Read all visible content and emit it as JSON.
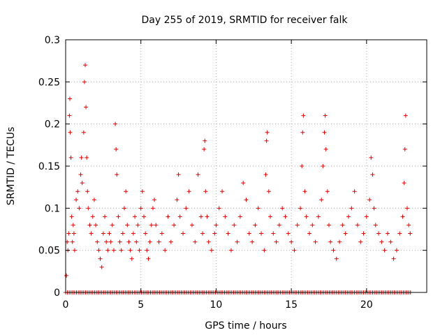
{
  "chart_data": {
    "type": "scatter",
    "title": "Day 255 of 2019, SRMTID for receiver falk",
    "xlabel": "GPS time / hours",
    "ylabel": "SRMTID / TECUs",
    "xlim": [
      0,
      24
    ],
    "ylim": [
      0,
      0.3
    ],
    "x_ticks": [
      0,
      5,
      10,
      15,
      20
    ],
    "x_tick_labels": [
      "0",
      "5",
      "10",
      "15",
      "20"
    ],
    "y_ticks": [
      0,
      0.05,
      0.1,
      0.15,
      0.2,
      0.25,
      0.3
    ],
    "y_tick_labels": [
      "0",
      "0.05",
      "0.1",
      "0.15",
      "0.2",
      "0.25",
      "0.3"
    ],
    "grid": true,
    "marker": "+",
    "series": [
      {
        "name": "SRMTID",
        "color": "#e00000",
        "points": [
          [
            0.05,
            0.02
          ],
          [
            0.1,
            0.06
          ],
          [
            0.15,
            0.05
          ],
          [
            0.2,
            0.07
          ],
          [
            0.25,
            0.21
          ],
          [
            0.28,
            0.23
          ],
          [
            0.3,
            0.19
          ],
          [
            0.35,
            0.16
          ],
          [
            0.4,
            0.09
          ],
          [
            0.45,
            0.06
          ],
          [
            0.5,
            0.08
          ],
          [
            0.55,
            0.07
          ],
          [
            0.6,
            0.05
          ],
          [
            0.7,
            0.11
          ],
          [
            0.8,
            0.12
          ],
          [
            0.9,
            0.1
          ],
          [
            1.0,
            0.14
          ],
          [
            1.05,
            0.16
          ],
          [
            1.1,
            0.13
          ],
          [
            1.2,
            0.19
          ],
          [
            1.25,
            0.25
          ],
          [
            1.3,
            0.27
          ],
          [
            1.35,
            0.22
          ],
          [
            1.4,
            0.16
          ],
          [
            1.45,
            0.12
          ],
          [
            1.5,
            0.1
          ],
          [
            1.6,
            0.08
          ],
          [
            1.7,
            0.07
          ],
          [
            1.8,
            0.09
          ],
          [
            1.9,
            0.11
          ],
          [
            2.0,
            0.08
          ],
          [
            2.1,
            0.06
          ],
          [
            2.2,
            0.05
          ],
          [
            2.3,
            0.04
          ],
          [
            2.4,
            0.03
          ],
          [
            2.5,
            0.07
          ],
          [
            2.6,
            0.09
          ],
          [
            2.7,
            0.06
          ],
          [
            2.8,
            0.05
          ],
          [
            2.9,
            0.07
          ],
          [
            3.0,
            0.06
          ],
          [
            3.1,
            0.08
          ],
          [
            3.2,
            0.05
          ],
          [
            3.3,
            0.2
          ],
          [
            3.35,
            0.17
          ],
          [
            3.4,
            0.14
          ],
          [
            3.5,
            0.09
          ],
          [
            3.6,
            0.06
          ],
          [
            3.7,
            0.05
          ],
          [
            3.8,
            0.07
          ],
          [
            3.9,
            0.1
          ],
          [
            4.0,
            0.12
          ],
          [
            4.1,
            0.08
          ],
          [
            4.2,
            0.06
          ],
          [
            4.3,
            0.05
          ],
          [
            4.4,
            0.04
          ],
          [
            4.5,
            0.07
          ],
          [
            4.6,
            0.09
          ],
          [
            4.7,
            0.06
          ],
          [
            4.8,
            0.08
          ],
          [
            4.9,
            0.05
          ],
          [
            5.0,
            0.1
          ],
          [
            5.1,
            0.12
          ],
          [
            5.2,
            0.09
          ],
          [
            5.3,
            0.07
          ],
          [
            5.4,
            0.05
          ],
          [
            5.5,
            0.04
          ],
          [
            5.6,
            0.06
          ],
          [
            5.7,
            0.08
          ],
          [
            5.8,
            0.1
          ],
          [
            5.9,
            0.11
          ],
          [
            6.0,
            0.08
          ],
          [
            6.2,
            0.06
          ],
          [
            6.4,
            0.07
          ],
          [
            6.6,
            0.05
          ],
          [
            6.8,
            0.09
          ],
          [
            7.0,
            0.06
          ],
          [
            7.2,
            0.08
          ],
          [
            7.4,
            0.11
          ],
          [
            7.5,
            0.14
          ],
          [
            7.6,
            0.09
          ],
          [
            7.8,
            0.07
          ],
          [
            8.0,
            0.1
          ],
          [
            8.2,
            0.12
          ],
          [
            8.4,
            0.08
          ],
          [
            8.6,
            0.06
          ],
          [
            8.8,
            0.14
          ],
          [
            9.0,
            0.09
          ],
          [
            9.1,
            0.07
          ],
          [
            9.2,
            0.17
          ],
          [
            9.25,
            0.18
          ],
          [
            9.3,
            0.12
          ],
          [
            9.4,
            0.09
          ],
          [
            9.5,
            0.06
          ],
          [
            9.7,
            0.05
          ],
          [
            9.9,
            0.07
          ],
          [
            10.0,
            0.08
          ],
          [
            10.2,
            0.1
          ],
          [
            10.4,
            0.12
          ],
          [
            10.6,
            0.09
          ],
          [
            10.8,
            0.07
          ],
          [
            11.0,
            0.05
          ],
          [
            11.2,
            0.08
          ],
          [
            11.4,
            0.06
          ],
          [
            11.6,
            0.09
          ],
          [
            11.8,
            0.13
          ],
          [
            12.0,
            0.11
          ],
          [
            12.2,
            0.07
          ],
          [
            12.4,
            0.06
          ],
          [
            12.6,
            0.08
          ],
          [
            12.8,
            0.1
          ],
          [
            13.0,
            0.07
          ],
          [
            13.2,
            0.05
          ],
          [
            13.3,
            0.14
          ],
          [
            13.35,
            0.18
          ],
          [
            13.4,
            0.19
          ],
          [
            13.5,
            0.12
          ],
          [
            13.6,
            0.09
          ],
          [
            13.8,
            0.07
          ],
          [
            14.0,
            0.06
          ],
          [
            14.2,
            0.08
          ],
          [
            14.4,
            0.1
          ],
          [
            14.6,
            0.09
          ],
          [
            14.8,
            0.07
          ],
          [
            15.0,
            0.06
          ],
          [
            15.2,
            0.05
          ],
          [
            15.4,
            0.08
          ],
          [
            15.6,
            0.1
          ],
          [
            15.7,
            0.15
          ],
          [
            15.75,
            0.19
          ],
          [
            15.8,
            0.21
          ],
          [
            15.9,
            0.12
          ],
          [
            16.0,
            0.09
          ],
          [
            16.2,
            0.07
          ],
          [
            16.4,
            0.08
          ],
          [
            16.6,
            0.06
          ],
          [
            16.8,
            0.09
          ],
          [
            17.0,
            0.11
          ],
          [
            17.1,
            0.15
          ],
          [
            17.2,
            0.19
          ],
          [
            17.25,
            0.21
          ],
          [
            17.3,
            0.17
          ],
          [
            17.4,
            0.12
          ],
          [
            17.5,
            0.08
          ],
          [
            17.6,
            0.06
          ],
          [
            17.8,
            0.05
          ],
          [
            18.0,
            0.04
          ],
          [
            18.2,
            0.06
          ],
          [
            18.4,
            0.08
          ],
          [
            18.6,
            0.07
          ],
          [
            18.8,
            0.09
          ],
          [
            19.0,
            0.1
          ],
          [
            19.2,
            0.12
          ],
          [
            19.4,
            0.08
          ],
          [
            19.6,
            0.06
          ],
          [
            19.8,
            0.07
          ],
          [
            20.0,
            0.09
          ],
          [
            20.2,
            0.11
          ],
          [
            20.3,
            0.16
          ],
          [
            20.4,
            0.14
          ],
          [
            20.5,
            0.1
          ],
          [
            20.6,
            0.08
          ],
          [
            20.8,
            0.07
          ],
          [
            21.0,
            0.06
          ],
          [
            21.2,
            0.05
          ],
          [
            21.4,
            0.07
          ],
          [
            21.6,
            0.06
          ],
          [
            21.8,
            0.04
          ],
          [
            22.0,
            0.05
          ],
          [
            22.2,
            0.07
          ],
          [
            22.4,
            0.09
          ],
          [
            22.5,
            0.13
          ],
          [
            22.55,
            0.17
          ],
          [
            22.6,
            0.21
          ],
          [
            22.7,
            0.1
          ],
          [
            22.8,
            0.08
          ],
          [
            22.9,
            0.07
          ]
        ]
      }
    ],
    "zero_band": {
      "x_start": 0.0,
      "x_end": 23.0,
      "value": 0
    }
  }
}
